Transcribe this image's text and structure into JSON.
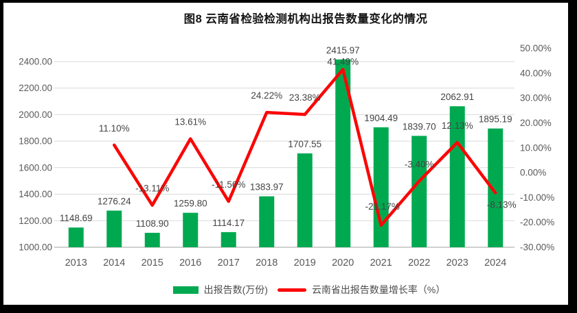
{
  "title": "图8 云南省检验检测机构出报告数量变化的情况",
  "legend": {
    "bar_label": "出报告数(万份)",
    "line_label": "云南省出报告数量增长率（%）"
  },
  "colors": {
    "bar": "#00A950",
    "line": "#FB0606",
    "grid": "#D9D9D9",
    "axis_line": "#BFBFBF",
    "axis_text": "#595959",
    "data_label_text": "#444444",
    "frame": "#000000",
    "background": "#FFFFFF"
  },
  "chart_data": {
    "type": "bar",
    "subtype": "bar+line combo, dual axis",
    "title": "图8 云南省检验检测机构出报告数量变化的情况",
    "categories": [
      "2013",
      "2014",
      "2015",
      "2016",
      "2017",
      "2018",
      "2019",
      "2020",
      "2021",
      "2022",
      "2023",
      "2024"
    ],
    "series": [
      {
        "name": "出报告数(万份)",
        "type": "bar",
        "axis": "left",
        "values": [
          1148.69,
          1276.24,
          1108.9,
          1259.8,
          1114.17,
          1383.97,
          1707.55,
          2415.97,
          1904.49,
          1839.7,
          2062.91,
          1895.19
        ],
        "labels": [
          "1148.69",
          "1276.24",
          "1108.90",
          "1259.80",
          "1114.17",
          "1383.97",
          "1707.55",
          "2415.97",
          "1904.49",
          "1839.70",
          "2062.91",
          "1895.19"
        ]
      },
      {
        "name": "云南省出报告数量增长率（%）",
        "type": "line",
        "axis": "right",
        "values": [
          null,
          11.1,
          -13.11,
          13.61,
          -11.56,
          24.22,
          23.38,
          41.49,
          -21.17,
          -3.4,
          12.13,
          -8.13
        ],
        "labels": [
          null,
          "11.10%",
          "-13.11%",
          "13.61%",
          "-11.56%",
          "24.22%",
          "23.38%",
          "41.49%",
          "-21.17%",
          "-3.40%",
          "12.13%",
          "-8.13%"
        ]
      }
    ],
    "left_axis": {
      "min": 1000,
      "max": 2500,
      "tick_values": [
        1000,
        1200,
        1400,
        1600,
        1800,
        2000,
        2200,
        2400
      ],
      "tick_labels": [
        "1000.00",
        "1200.00",
        "1400.00",
        "1600.00",
        "1800.00",
        "2000.00",
        "2200.00",
        "2400.00"
      ]
    },
    "right_axis": {
      "min": -30,
      "max": 50,
      "tick_values": [
        -30,
        -20,
        -10,
        0,
        10,
        20,
        30,
        40,
        50
      ],
      "tick_labels": [
        "-30.00%",
        "-20.00%",
        "-10.00%",
        "0.00%",
        "10.00%",
        "20.00%",
        "30.00%",
        "40.00%",
        "50.00%"
      ]
    },
    "grid": true,
    "legend_position": "bottom",
    "xlabel": "",
    "ylabel": ""
  }
}
